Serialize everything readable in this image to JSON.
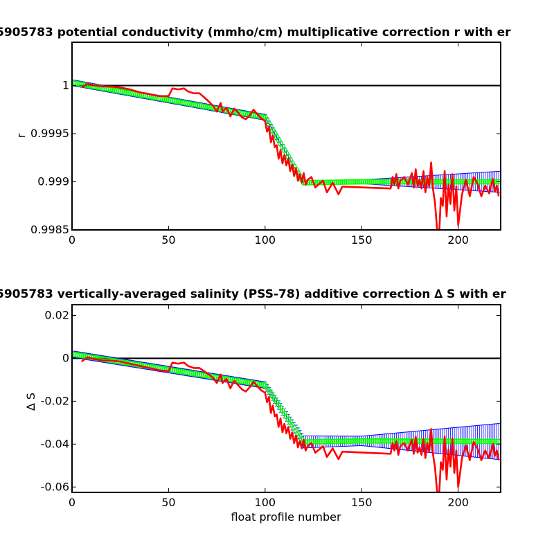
{
  "chart_data": [
    {
      "type": "line",
      "title": "5905783 potential conductivity (mmho/cm) multiplicative correction r with er",
      "xlabel": "",
      "ylabel": "r",
      "xlim": [
        0,
        222
      ],
      "ylim": [
        0.9985,
        1.00045
      ],
      "xticks": [
        0,
        50,
        100,
        150,
        200
      ],
      "xtick_labels": [
        "0",
        "50",
        "100",
        "150",
        "200"
      ],
      "yticks": [
        0.9985,
        0.999,
        0.9995,
        1
      ],
      "ytick_labels": [
        "0.9985",
        "0.999",
        "0.9995",
        "1"
      ],
      "grid": false,
      "reference_line": 1.0,
      "series": [
        {
          "role": "fit",
          "color": "#00ff00",
          "x": [
            0,
            100,
            120,
            150,
            222
          ],
          "y": [
            1.00003,
            0.99967,
            0.99899,
            0.999,
            0.999
          ]
        },
        {
          "role": "fit_error",
          "color": "#0000ff",
          "x": [
            0,
            100,
            120,
            150,
            222
          ],
          "err": [
            3e-05,
            3e-05,
            2e-05,
            2e-05,
            0.00011
          ]
        },
        {
          "role": "profile_estimate",
          "color": "#ff0000",
          "x": [
            5,
            8,
            12,
            16,
            20,
            25,
            30,
            35,
            40,
            45,
            50,
            52,
            55,
            58,
            60,
            63,
            66,
            70,
            73,
            75,
            77,
            78,
            80,
            82,
            84,
            86,
            88,
            90,
            92,
            94,
            96,
            98,
            100,
            101,
            102,
            103,
            104,
            105,
            106,
            107,
            108,
            109,
            110,
            111,
            112,
            113,
            114,
            115,
            116,
            117,
            118,
            119,
            120,
            121,
            122,
            124,
            126,
            128,
            130,
            132,
            135,
            138,
            140,
            165,
            166,
            167,
            168,
            169,
            170,
            172,
            174,
            176,
            177,
            178,
            179,
            180,
            181,
            182,
            183,
            184,
            185,
            186,
            187,
            188,
            189,
            190,
            191,
            192,
            193,
            194,
            195,
            196,
            197,
            198,
            199,
            200,
            202,
            204,
            206,
            208,
            210,
            212,
            214,
            216,
            218,
            219,
            220,
            221
          ],
          "y": [
            0.99998,
            1.00002,
            1.0,
            0.99999,
            0.99999,
            0.99998,
            0.99996,
            0.99993,
            0.99991,
            0.99989,
            0.99989,
            0.99997,
            0.99996,
            0.99997,
            0.99994,
            0.99992,
            0.99992,
            0.99985,
            0.99979,
            0.99973,
            0.99982,
            0.99973,
            0.99977,
            0.99968,
            0.99976,
            0.99972,
            0.99967,
            0.99965,
            0.99969,
            0.99975,
            0.9997,
            0.99966,
            0.99963,
            0.99952,
            0.99957,
            0.99941,
            0.99948,
            0.99936,
            0.99938,
            0.99924,
            0.99933,
            0.99919,
            0.99928,
            0.99917,
            0.99924,
            0.99911,
            0.99918,
            0.99906,
            0.99914,
            0.99901,
            0.99908,
            0.99899,
            0.99909,
            0.99897,
            0.99902,
            0.99905,
            0.99894,
            0.99898,
            0.99901,
            0.99889,
            0.99899,
            0.99887,
            0.99895,
            0.99893,
            0.99905,
            0.99897,
            0.99908,
            0.99893,
            0.99901,
            0.99905,
            0.99897,
            0.99909,
            0.99894,
            0.99913,
            0.99895,
            0.99902,
            0.99893,
            0.99911,
            0.99889,
            0.99905,
            0.99895,
            0.9992,
            0.99892,
            0.99878,
            0.99852,
            0.9984,
            0.99883,
            0.99875,
            0.99911,
            0.99864,
            0.99897,
            0.99877,
            0.99908,
            0.9987,
            0.99895,
            0.99855,
            0.99887,
            0.99902,
            0.99885,
            0.99905,
            0.99898,
            0.99885,
            0.99896,
            0.99888,
            0.99903,
            0.9989,
            0.99896,
            0.99885
          ]
        }
      ]
    },
    {
      "type": "line",
      "title": "5905783 vertically-averaged salinity (PSS-78) additive correction ∆ S with er",
      "xlabel": "float profile number",
      "ylabel": "∆ S",
      "xlim": [
        0,
        222
      ],
      "ylim": [
        -0.0625,
        0.025
      ],
      "xticks": [
        0,
        50,
        100,
        150,
        200
      ],
      "xtick_labels": [
        "0",
        "50",
        "100",
        "150",
        "200"
      ],
      "yticks": [
        -0.06,
        -0.04,
        -0.02,
        0,
        0.02
      ],
      "ytick_labels": [
        "-0.06",
        "-0.04",
        "-0.02",
        "0",
        "0.02"
      ],
      "grid": false,
      "reference_line": 0,
      "series": [
        {
          "role": "fit",
          "color": "#00ff00",
          "x": [
            0,
            100,
            120,
            150,
            222
          ],
          "y": [
            0.002,
            -0.0125,
            -0.039,
            -0.0385,
            -0.0388
          ]
        },
        {
          "role": "fit_error",
          "color": "#0000ff",
          "x": [
            0,
            100,
            120,
            150,
            222
          ],
          "err": [
            0.0015,
            0.0015,
            0.0028,
            0.0022,
            0.0085
          ]
        },
        {
          "role": "profile_estimate",
          "color": "#ff0000",
          "x": [
            5,
            8,
            12,
            16,
            20,
            25,
            30,
            35,
            40,
            45,
            50,
            52,
            55,
            58,
            60,
            63,
            66,
            70,
            73,
            75,
            77,
            78,
            80,
            82,
            84,
            86,
            88,
            90,
            92,
            94,
            96,
            98,
            100,
            101,
            102,
            103,
            104,
            105,
            106,
            107,
            108,
            109,
            110,
            111,
            112,
            113,
            114,
            115,
            116,
            117,
            118,
            119,
            120,
            121,
            122,
            124,
            126,
            128,
            130,
            132,
            135,
            138,
            140,
            165,
            166,
            167,
            168,
            169,
            170,
            172,
            174,
            176,
            177,
            178,
            179,
            180,
            181,
            182,
            183,
            184,
            185,
            186,
            187,
            188,
            189,
            190,
            191,
            192,
            193,
            194,
            195,
            196,
            197,
            198,
            199,
            200,
            202,
            204,
            206,
            208,
            210,
            212,
            214,
            216,
            218,
            219,
            220,
            221
          ],
          "y": [
            -0.0015,
            0.0005,
            -0.0005,
            -0.001,
            -0.001,
            -0.0015,
            -0.0025,
            -0.0035,
            -0.0045,
            -0.0055,
            -0.006,
            -0.002,
            -0.0025,
            -0.002,
            -0.0035,
            -0.0045,
            -0.0045,
            -0.007,
            -0.009,
            -0.0115,
            -0.0075,
            -0.0115,
            -0.0095,
            -0.014,
            -0.0105,
            -0.0125,
            -0.0145,
            -0.0155,
            -0.0135,
            -0.011,
            -0.013,
            -0.015,
            -0.016,
            -0.0205,
            -0.018,
            -0.0255,
            -0.022,
            -0.027,
            -0.0262,
            -0.032,
            -0.028,
            -0.0345,
            -0.0305,
            -0.035,
            -0.032,
            -0.0375,
            -0.0345,
            -0.0395,
            -0.036,
            -0.0415,
            -0.0385,
            -0.042,
            -0.038,
            -0.043,
            -0.041,
            -0.0395,
            -0.044,
            -0.0425,
            -0.041,
            -0.046,
            -0.042,
            -0.047,
            -0.0435,
            -0.0445,
            -0.0395,
            -0.043,
            -0.0385,
            -0.045,
            -0.041,
            -0.0395,
            -0.043,
            -0.038,
            -0.0445,
            -0.0365,
            -0.044,
            -0.0415,
            -0.045,
            -0.0375,
            -0.0465,
            -0.0395,
            -0.0435,
            -0.033,
            -0.045,
            -0.051,
            -0.0615,
            -0.066,
            -0.0485,
            -0.052,
            -0.0365,
            -0.0565,
            -0.0425,
            -0.0505,
            -0.0375,
            -0.0535,
            -0.043,
            -0.06,
            -0.0465,
            -0.0405,
            -0.0475,
            -0.039,
            -0.042,
            -0.0475,
            -0.043,
            -0.0465,
            -0.04,
            -0.0455,
            -0.043,
            -0.0475
          ]
        }
      ]
    }
  ]
}
